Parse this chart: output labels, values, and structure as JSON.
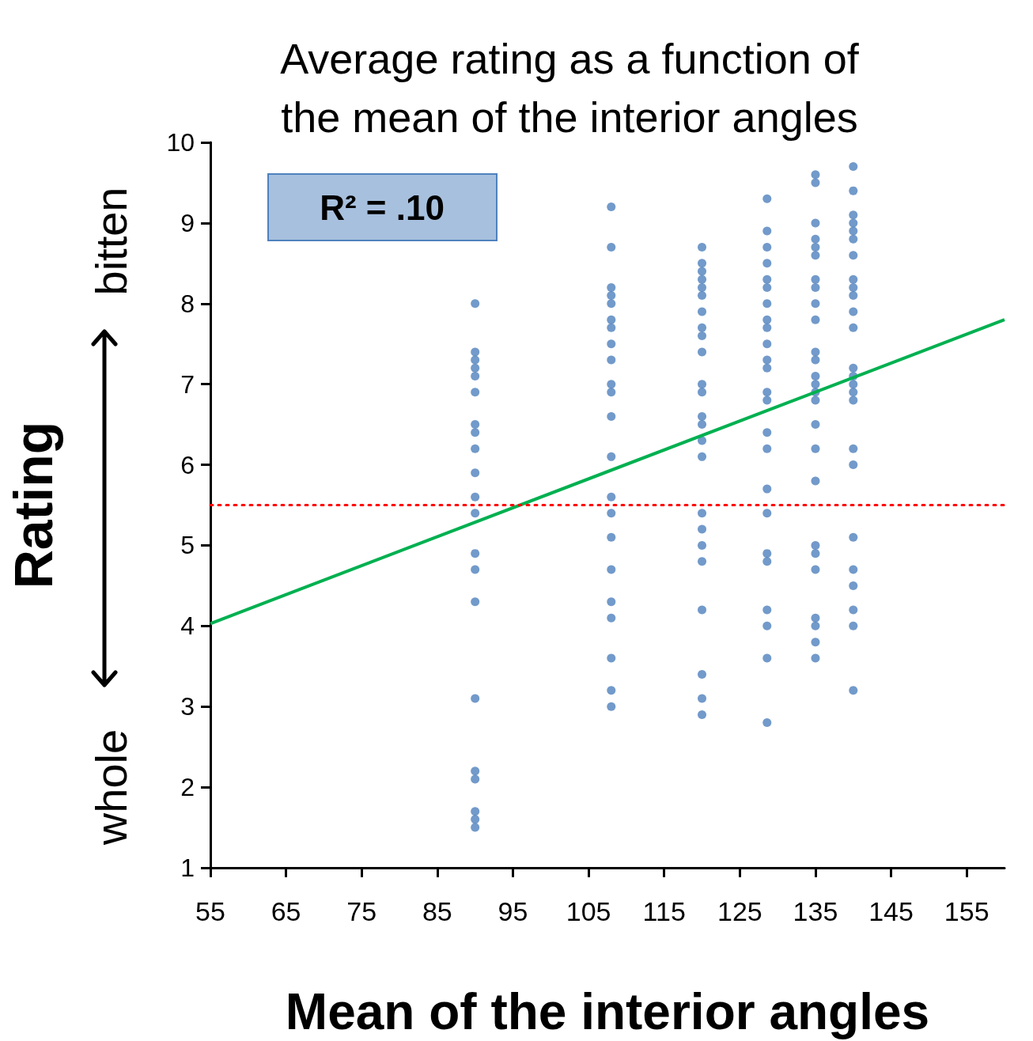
{
  "chart_data": {
    "type": "scatter",
    "title": "Average rating as a function of\nthe mean of the interior angles",
    "xlabel": "Mean of the interior angles",
    "ylabel": "Rating",
    "annotations": [
      "R² = .10",
      "whole",
      "bitten"
    ],
    "xlim": [
      55,
      160
    ],
    "xticks": [
      55,
      65,
      75,
      85,
      95,
      105,
      115,
      125,
      135,
      145,
      155
    ],
    "ylim": [
      1,
      10
    ],
    "yticks": [
      1,
      2,
      3,
      4,
      5,
      6,
      7,
      8,
      9,
      10
    ],
    "grid": false,
    "marker": "circle",
    "ref_lines": [
      {
        "axis": "y",
        "value": 5.5,
        "color": "#ff0000",
        "line_style": "dotted"
      }
    ],
    "series": [
      {
        "color": "#4f81bd",
        "x": [
          90,
          90,
          90,
          90,
          90,
          90,
          90,
          90,
          90,
          90,
          90,
          90,
          90,
          90,
          90,
          90,
          90,
          90,
          90,
          90,
          90
        ],
        "values": [
          8.0,
          7.4,
          7.3,
          7.2,
          7.1,
          6.9,
          6.5,
          6.4,
          6.2,
          5.9,
          5.6,
          5.4,
          4.9,
          4.7,
          4.3,
          3.1,
          2.2,
          2.1,
          1.7,
          1.6,
          1.5
        ]
      },
      {
        "color": "#4f81bd",
        "x": [
          108,
          108,
          108,
          108,
          108,
          108,
          108,
          108,
          108,
          108,
          108,
          108,
          108,
          108,
          108,
          108,
          108,
          108,
          108,
          108,
          108,
          108
        ],
        "values": [
          9.2,
          8.7,
          8.2,
          8.1,
          8.0,
          7.8,
          7.7,
          7.5,
          7.3,
          7.0,
          6.9,
          6.6,
          6.1,
          5.6,
          5.4,
          5.1,
          4.7,
          4.3,
          4.1,
          3.6,
          3.2,
          3.0
        ]
      },
      {
        "color": "#4f81bd",
        "x": [
          120,
          120,
          120,
          120,
          120,
          120,
          120,
          120,
          120,
          120,
          120,
          120,
          120,
          120,
          120,
          120,
          120,
          120,
          120,
          120,
          120,
          120,
          120,
          120
        ],
        "values": [
          8.7,
          8.5,
          8.4,
          8.3,
          8.2,
          8.1,
          7.9,
          7.7,
          7.6,
          7.4,
          7.0,
          6.9,
          6.6,
          6.5,
          6.3,
          6.1,
          5.4,
          5.2,
          5.0,
          4.8,
          4.2,
          3.4,
          3.1,
          2.9
        ]
      },
      {
        "color": "#4f81bd",
        "x": [
          128.6,
          128.6,
          128.6,
          128.6,
          128.6,
          128.6,
          128.6,
          128.6,
          128.6,
          128.6,
          128.6,
          128.6,
          128.6,
          128.6,
          128.6,
          128.6,
          128.6,
          128.6,
          128.6,
          128.6,
          128.6,
          128.6,
          128.6,
          128.6
        ],
        "values": [
          9.3,
          8.9,
          8.7,
          8.5,
          8.3,
          8.2,
          8.0,
          7.8,
          7.7,
          7.5,
          7.3,
          7.2,
          6.9,
          6.8,
          6.4,
          6.2,
          5.7,
          5.4,
          4.9,
          4.8,
          4.2,
          4.0,
          3.6,
          2.8
        ]
      },
      {
        "color": "#4f81bd",
        "x": [
          135,
          135,
          135,
          135,
          135,
          135,
          135,
          135,
          135,
          135,
          135,
          135,
          135,
          135,
          135,
          135,
          135,
          135,
          135,
          135,
          135,
          135,
          135,
          135,
          135,
          135
        ],
        "values": [
          9.6,
          9.5,
          9.0,
          8.8,
          8.7,
          8.6,
          8.3,
          8.2,
          8.0,
          7.8,
          7.4,
          7.3,
          7.1,
          7.0,
          6.9,
          6.8,
          6.5,
          6.2,
          5.8,
          5.0,
          4.9,
          4.7,
          4.1,
          4.0,
          3.8,
          3.6
        ]
      },
      {
        "color": "#4f81bd",
        "x": [
          140,
          140,
          140,
          140,
          140,
          140,
          140,
          140,
          140,
          140,
          140,
          140,
          140,
          140,
          140,
          140,
          140,
          140,
          140,
          140,
          140,
          140,
          140,
          140,
          140
        ],
        "values": [
          9.7,
          9.4,
          9.1,
          9.0,
          8.9,
          8.8,
          8.6,
          8.3,
          8.2,
          8.1,
          7.9,
          7.7,
          7.2,
          7.1,
          7.0,
          6.9,
          6.8,
          6.2,
          6.0,
          5.1,
          4.7,
          4.5,
          4.2,
          4.0,
          3.2
        ]
      },
      {
        "type": "line",
        "color": "#00b050",
        "marker": "none",
        "line_style": "solid",
        "x": [
          55,
          160
        ],
        "values": [
          4.03,
          7.8
        ]
      }
    ]
  }
}
